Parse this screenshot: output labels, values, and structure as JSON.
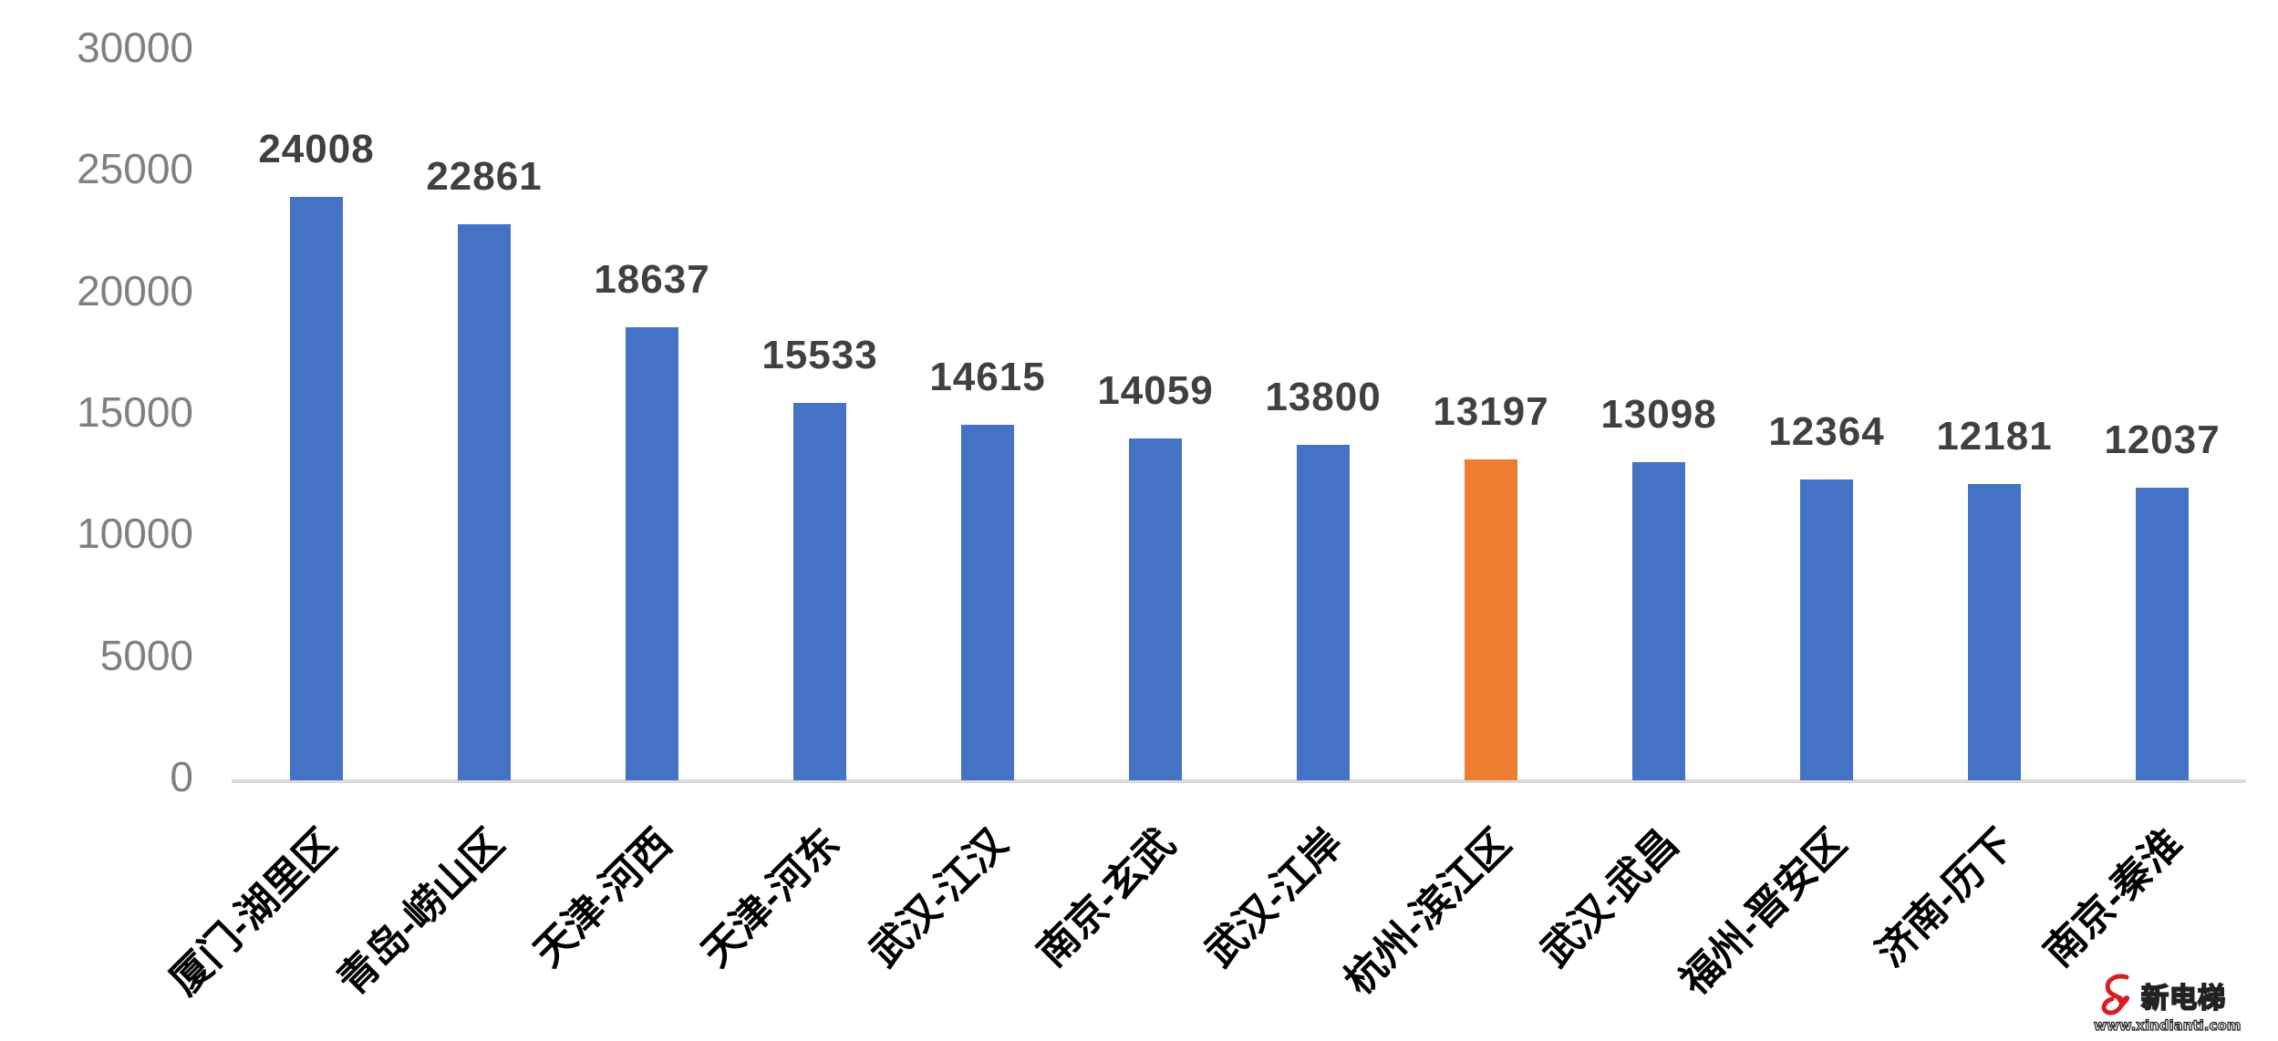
{
  "chart_data": {
    "type": "bar",
    "title": "",
    "xlabel": "",
    "ylabel": "",
    "ylim": [
      0,
      30000
    ],
    "yticks": [
      0,
      5000,
      10000,
      15000,
      20000,
      25000,
      30000
    ],
    "grid": false,
    "legend": null,
    "categories": [
      "厦门-湖里区",
      "青岛-崂山区",
      "天津-河西",
      "天津-河东",
      "武汉-江汉",
      "南京-玄武",
      "武汉-江岸",
      "杭州-滨江区",
      "武汉-武昌",
      "福州-晋安区",
      "济南-历下",
      "南京-秦淮"
    ],
    "values": [
      24008,
      22861,
      18637,
      15533,
      14615,
      14059,
      13800,
      13197,
      13098,
      12364,
      12181,
      12037
    ],
    "data_labels": [
      "24008",
      "22861",
      "18637",
      "15533",
      "14615",
      "14059",
      "13800",
      "13197",
      "13098",
      "12364",
      "12181",
      "12037"
    ],
    "highlight_index": 7,
    "colors": {
      "bar": "#4472c4",
      "highlight": "#ed7d31",
      "axis": "#d9d9d9",
      "tick_label": "#808080",
      "data_label": "#404040"
    }
  },
  "watermark": {
    "title": "新电梯",
    "url": "www.xindianti.com",
    "logo_icon": "elevator-logo-icon"
  }
}
